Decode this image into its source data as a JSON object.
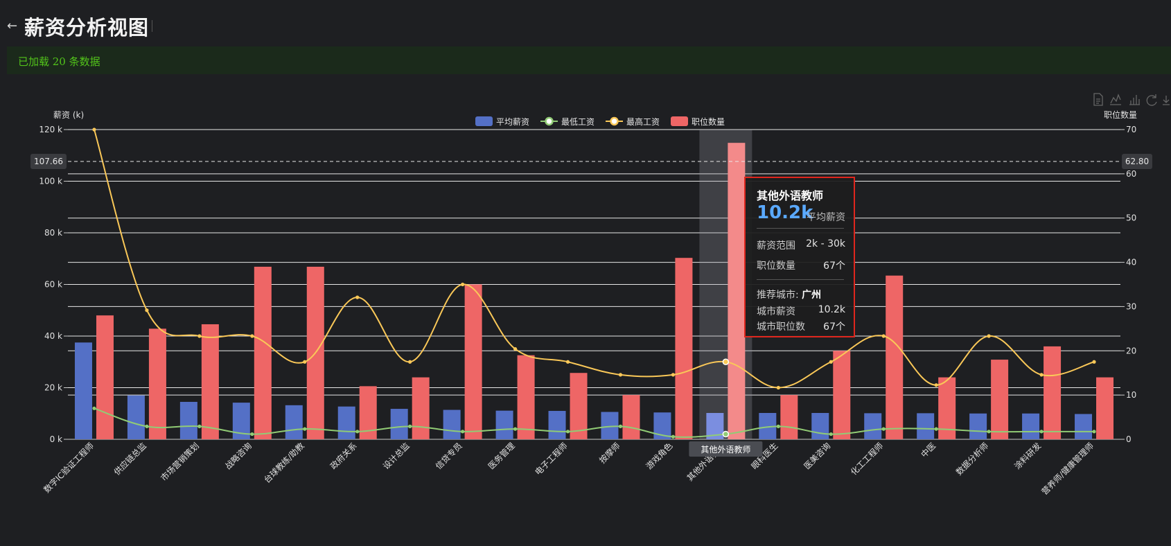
{
  "header": {
    "back_icon": "arrow-left-icon",
    "title": "薪资分析视图"
  },
  "status": {
    "message": "已加载 20 条数据",
    "color": "#52c41a"
  },
  "toolbox": {
    "icons": [
      "data-view-icon",
      "line-switch-icon",
      "bar-switch-icon",
      "restore-icon",
      "save-image-icon"
    ]
  },
  "chart_data": {
    "type": "bar",
    "categories": [
      "数字IC验证工程师",
      "供应链总监",
      "市场营销策划",
      "战略咨询",
      "台球教练/助教",
      "政府关系",
      "设计总监",
      "信贷专员",
      "医务管理",
      "电子工程师",
      "按摩师",
      "游戏角色",
      "其他外语教师",
      "眼科医生",
      "医美咨询",
      "化工工程师",
      "中医",
      "数据分析师",
      "涂料研发",
      "营养师/健康管理师"
    ],
    "y_left": {
      "name": "薪资 (k)",
      "min": 0,
      "max": 120,
      "ticks": [
        "0 k",
        "20 k",
        "40 k",
        "60 k",
        "80 k",
        "100 k",
        "120 k"
      ]
    },
    "y_right": {
      "name": "职位数量",
      "min": 0,
      "max": 70,
      "ticks": [
        "0",
        "10",
        "20",
        "30",
        "40",
        "50",
        "60",
        "70"
      ]
    },
    "legend": {
      "placement": "top-center"
    },
    "series": [
      {
        "name": "平均薪资",
        "kind": "bar",
        "axis": "left",
        "color": "#5470c6",
        "values": [
          37.5,
          17,
          14.5,
          14.2,
          13.2,
          12.7,
          11.8,
          11.4,
          11.1,
          11.0,
          10.6,
          10.4,
          10.2,
          10.2,
          10.2,
          10.1,
          10.1,
          10.0,
          10.0,
          9.8
        ]
      },
      {
        "name": "最低工资",
        "kind": "line",
        "axis": "left",
        "color": "#91cc75",
        "values": [
          12,
          5,
          5,
          2,
          4,
          3,
          5,
          3,
          4,
          3,
          5,
          1,
          2,
          5,
          2,
          4,
          4,
          3,
          3,
          3
        ]
      },
      {
        "name": "最高工资",
        "kind": "line",
        "axis": "left",
        "color": "#fac858",
        "values": [
          120,
          50,
          40,
          40,
          30,
          55,
          30,
          60,
          35,
          30,
          25,
          25,
          30,
          20,
          30,
          40,
          21,
          40,
          25,
          30
        ]
      },
      {
        "name": "职位数量",
        "kind": "bar",
        "axis": "right",
        "color": "#ee6666",
        "values": [
          28,
          25,
          26,
          39,
          39,
          12,
          14,
          35,
          19,
          15,
          10,
          41,
          67,
          10,
          20,
          37,
          14,
          18,
          21,
          14
        ]
      }
    ],
    "mark_lines": {
      "left_value": "107.66",
      "right_value": "62.80"
    },
    "highlighted_category": "其他外语教师"
  },
  "tooltip": {
    "title": "其他外语教师",
    "avg_value": "10.2k",
    "avg_label": "平均薪资",
    "rows": [
      {
        "label": "薪资范围",
        "value": "2k - 30k"
      },
      {
        "label": "职位数量",
        "value": "67个"
      }
    ],
    "city_label": "推荐城市:",
    "city": "广州",
    "city_rows": [
      {
        "label": "城市薪资",
        "value": "10.2k"
      },
      {
        "label": "城市职位数",
        "value": "67个"
      }
    ]
  }
}
